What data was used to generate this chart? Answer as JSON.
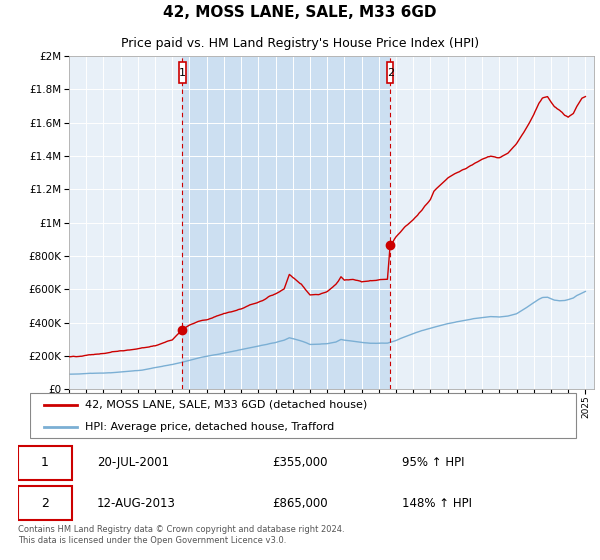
{
  "title": "42, MOSS LANE, SALE, M33 6GD",
  "subtitle": "Price paid vs. HM Land Registry's House Price Index (HPI)",
  "title_fontsize": 11,
  "subtitle_fontsize": 9,
  "legend_line1": "42, MOSS LANE, SALE, M33 6GD (detached house)",
  "legend_line2": "HPI: Average price, detached house, Trafford",
  "sale1_year": 2001,
  "sale1_month": 7,
  "sale1_price": 355000,
  "sale1_text": "20-JUL-2001",
  "sale1_pct": "95% ↑ HPI",
  "sale2_year": 2013,
  "sale2_month": 8,
  "sale2_price": 865000,
  "sale2_text": "12-AUG-2013",
  "sale2_pct": "148% ↑ HPI",
  "footer": "Contains HM Land Registry data © Crown copyright and database right 2024.\nThis data is licensed under the Open Government Licence v3.0.",
  "red_color": "#cc0000",
  "blue_color": "#7bafd4",
  "shade_color": "#dce9f5",
  "bg_color": "#e8f0f8",
  "plot_bg": "#e8f0f8",
  "ylim": [
    0,
    2000000
  ],
  "xlim_start": 1995.0,
  "xlim_end": 2025.5
}
